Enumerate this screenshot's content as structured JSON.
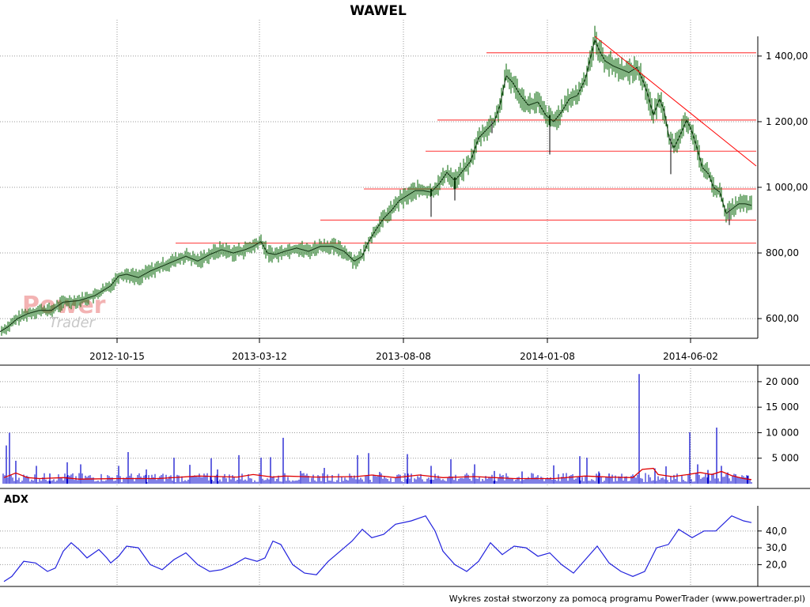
{
  "chart_data": [
    {
      "panel": "price",
      "type": "candlestick",
      "title": "WAWEL",
      "ylim": [
        540,
        1460
      ],
      "yticks": [
        {
          "value": 600,
          "label": "600,00"
        },
        {
          "value": 800,
          "label": "800,00"
        },
        {
          "value": 1000,
          "label": "1 000,00"
        },
        {
          "value": 1200,
          "label": "1 200,00"
        },
        {
          "value": 1400,
          "label": "1 400,00"
        }
      ],
      "xticks": [
        "2012-10-15",
        "2013-03-12",
        "2013-08-08",
        "2014-01-08",
        "2014-06-02"
      ],
      "grid": true,
      "series_path": [
        [
          0,
          560
        ],
        [
          10,
          575
        ],
        [
          22,
          600
        ],
        [
          35,
          615
        ],
        [
          50,
          625
        ],
        [
          65,
          625
        ],
        [
          80,
          650
        ],
        [
          100,
          655
        ],
        [
          120,
          670
        ],
        [
          140,
          700
        ],
        [
          150,
          730
        ],
        [
          160,
          735
        ],
        [
          175,
          725
        ],
        [
          190,
          745
        ],
        [
          205,
          760
        ],
        [
          220,
          775
        ],
        [
          235,
          790
        ],
        [
          250,
          775
        ],
        [
          265,
          795
        ],
        [
          280,
          810
        ],
        [
          295,
          800
        ],
        [
          310,
          810
        ],
        [
          320,
          820
        ],
        [
          330,
          835
        ],
        [
          338,
          800
        ],
        [
          348,
          795
        ],
        [
          360,
          805
        ],
        [
          375,
          815
        ],
        [
          390,
          805
        ],
        [
          405,
          820
        ],
        [
          420,
          820
        ],
        [
          435,
          805
        ],
        [
          448,
          775
        ],
        [
          458,
          790
        ],
        [
          465,
          830
        ],
        [
          475,
          870
        ],
        [
          485,
          905
        ],
        [
          495,
          930
        ],
        [
          505,
          960
        ],
        [
          515,
          975
        ],
        [
          525,
          990
        ],
        [
          535,
          990
        ],
        [
          545,
          985
        ],
        [
          555,
          1010
        ],
        [
          565,
          1045
        ],
        [
          575,
          1020
        ],
        [
          585,
          1050
        ],
        [
          595,
          1080
        ],
        [
          605,
          1150
        ],
        [
          615,
          1175
        ],
        [
          625,
          1200
        ],
        [
          632,
          1250
        ],
        [
          640,
          1340
        ],
        [
          648,
          1320
        ],
        [
          658,
          1280
        ],
        [
          668,
          1250
        ],
        [
          680,
          1260
        ],
        [
          690,
          1220
        ],
        [
          700,
          1200
        ],
        [
          710,
          1230
        ],
        [
          720,
          1270
        ],
        [
          730,
          1280
        ],
        [
          740,
          1330
        ],
        [
          748,
          1410
        ],
        [
          752,
          1450
        ],
        [
          758,
          1415
        ],
        [
          765,
          1385
        ],
        [
          775,
          1370
        ],
        [
          785,
          1360
        ],
        [
          795,
          1350
        ],
        [
          805,
          1365
        ],
        [
          812,
          1330
        ],
        [
          818,
          1290
        ],
        [
          826,
          1220
        ],
        [
          834,
          1270
        ],
        [
          840,
          1230
        ],
        [
          846,
          1150
        ],
        [
          852,
          1120
        ],
        [
          860,
          1160
        ],
        [
          868,
          1205
        ],
        [
          874,
          1175
        ],
        [
          880,
          1130
        ],
        [
          888,
          1060
        ],
        [
          896,
          1040
        ],
        [
          902,
          1000
        ],
        [
          910,
          985
        ],
        [
          918,
          920
        ],
        [
          926,
          935
        ],
        [
          934,
          950
        ],
        [
          942,
          950
        ],
        [
          950,
          945
        ]
      ],
      "support_lines": [
        {
          "value": 1410,
          "x_start": 615
        },
        {
          "value": 1205,
          "x_start": 553
        },
        {
          "value": 1110,
          "x_start": 538
        },
        {
          "value": 995,
          "x_start": 460
        },
        {
          "value": 900,
          "x_start": 405
        },
        {
          "value": 830,
          "x_start": 222
        }
      ],
      "trend_line": {
        "from": [
          752,
          1460
        ],
        "to": [
          956,
          1065
        ]
      }
    },
    {
      "panel": "volume",
      "type": "bar",
      "ylim": [
        0,
        22000
      ],
      "yticks": [
        {
          "value": 5000,
          "label": "5 000"
        },
        {
          "value": 10000,
          "label": "10 000"
        },
        {
          "value": 15000,
          "label": "15 000"
        },
        {
          "value": 20000,
          "label": "20 000"
        }
      ],
      "spikes": [
        [
          8,
          7500
        ],
        [
          12,
          10000
        ],
        [
          20,
          4500
        ],
        [
          46,
          3500
        ],
        [
          63,
          2000
        ],
        [
          85,
          4200
        ],
        [
          102,
          3800
        ],
        [
          150,
          3500
        ],
        [
          162,
          6200
        ],
        [
          185,
          2800
        ],
        [
          220,
          5100
        ],
        [
          240,
          3700
        ],
        [
          267,
          5000
        ],
        [
          275,
          2800
        ],
        [
          302,
          5600
        ],
        [
          330,
          5100
        ],
        [
          342,
          5200
        ],
        [
          358,
          9000
        ],
        [
          380,
          2500
        ],
        [
          410,
          3100
        ],
        [
          452,
          5600
        ],
        [
          466,
          6000
        ],
        [
          480,
          2300
        ],
        [
          515,
          5800
        ],
        [
          545,
          3500
        ],
        [
          570,
          4800
        ],
        [
          600,
          3800
        ],
        [
          625,
          2500
        ],
        [
          660,
          2400
        ],
        [
          700,
          3600
        ],
        [
          733,
          5400
        ],
        [
          742,
          5100
        ],
        [
          757,
          2400
        ],
        [
          770,
          2000
        ],
        [
          808,
          21500
        ],
        [
          828,
          3000
        ],
        [
          842,
          3400
        ],
        [
          872,
          10100
        ],
        [
          882,
          3800
        ],
        [
          895,
          2700
        ],
        [
          906,
          11000
        ],
        [
          912,
          3500
        ],
        [
          920,
          2200
        ],
        [
          930,
          1800
        ],
        [
          945,
          1500
        ]
      ],
      "moving_average": [
        [
          5,
          1200
        ],
        [
          20,
          2100
        ],
        [
          35,
          1200
        ],
        [
          50,
          1000
        ],
        [
          80,
          1200
        ],
        [
          100,
          900
        ],
        [
          150,
          1000
        ],
        [
          200,
          1000
        ],
        [
          250,
          1500
        ],
        [
          300,
          1300
        ],
        [
          320,
          1800
        ],
        [
          345,
          1300
        ],
        [
          360,
          1500
        ],
        [
          400,
          1300
        ],
        [
          450,
          1400
        ],
        [
          470,
          1700
        ],
        [
          500,
          1200
        ],
        [
          530,
          1700
        ],
        [
          560,
          1200
        ],
        [
          600,
          1400
        ],
        [
          650,
          1000
        ],
        [
          700,
          1000
        ],
        [
          740,
          1500
        ],
        [
          770,
          1300
        ],
        [
          800,
          1200
        ],
        [
          812,
          2800
        ],
        [
          826,
          3000
        ],
        [
          832,
          1800
        ],
        [
          850,
          1400
        ],
        [
          870,
          1800
        ],
        [
          885,
          2200
        ],
        [
          900,
          1800
        ],
        [
          912,
          2400
        ],
        [
          925,
          1600
        ],
        [
          940,
          1000
        ],
        [
          950,
          800
        ]
      ]
    },
    {
      "panel": "indicator",
      "type": "line",
      "title": "ADX",
      "ylim": [
        8,
        54
      ],
      "yticks": [
        {
          "value": 20,
          "label": "20,0"
        },
        {
          "value": 30,
          "label": "30,0"
        },
        {
          "value": 40,
          "label": "40,0"
        }
      ],
      "series": [
        [
          5,
          10
        ],
        [
          15,
          13
        ],
        [
          30,
          22
        ],
        [
          45,
          21
        ],
        [
          60,
          16
        ],
        [
          70,
          18
        ],
        [
          80,
          28
        ],
        [
          90,
          33
        ],
        [
          100,
          29
        ],
        [
          110,
          24
        ],
        [
          125,
          29
        ],
        [
          135,
          24
        ],
        [
          140,
          21
        ],
        [
          150,
          25
        ],
        [
          160,
          31
        ],
        [
          175,
          30
        ],
        [
          190,
          20
        ],
        [
          205,
          17
        ],
        [
          220,
          23
        ],
        [
          235,
          27
        ],
        [
          250,
          20
        ],
        [
          265,
          16
        ],
        [
          280,
          17
        ],
        [
          295,
          20
        ],
        [
          310,
          24
        ],
        [
          325,
          22
        ],
        [
          335,
          24
        ],
        [
          345,
          34
        ],
        [
          355,
          32
        ],
        [
          370,
          20
        ],
        [
          385,
          15
        ],
        [
          400,
          14
        ],
        [
          415,
          22
        ],
        [
          430,
          28
        ],
        [
          445,
          34
        ],
        [
          458,
          41
        ],
        [
          470,
          36
        ],
        [
          485,
          38
        ],
        [
          500,
          44
        ],
        [
          520,
          46
        ],
        [
          538,
          49
        ],
        [
          550,
          40
        ],
        [
          560,
          28
        ],
        [
          575,
          20
        ],
        [
          590,
          16
        ],
        [
          605,
          22
        ],
        [
          620,
          33
        ],
        [
          635,
          26
        ],
        [
          650,
          31
        ],
        [
          665,
          30
        ],
        [
          680,
          25
        ],
        [
          695,
          27
        ],
        [
          710,
          20
        ],
        [
          725,
          15
        ],
        [
          740,
          23
        ],
        [
          755,
          31
        ],
        [
          770,
          21
        ],
        [
          785,
          16
        ],
        [
          800,
          13
        ],
        [
          815,
          16
        ],
        [
          830,
          30
        ],
        [
          845,
          32
        ],
        [
          858,
          41
        ],
        [
          875,
          36
        ],
        [
          890,
          40
        ],
        [
          905,
          40
        ],
        [
          925,
          49
        ],
        [
          940,
          46
        ],
        [
          950,
          45
        ]
      ]
    }
  ],
  "footer": "Wykres został stworzony za pomocą programu PowerTrader (www.powertrader.pl)",
  "watermark": {
    "line1": "Power",
    "line2": "Trader"
  },
  "colors": {
    "candle": "#006400",
    "support": "#ff4d4d",
    "trend": "#ff0000",
    "volume": "#0000cc",
    "moving_average": "#e00000",
    "adx": "#2222dd",
    "grid": "#9a9a9a"
  }
}
